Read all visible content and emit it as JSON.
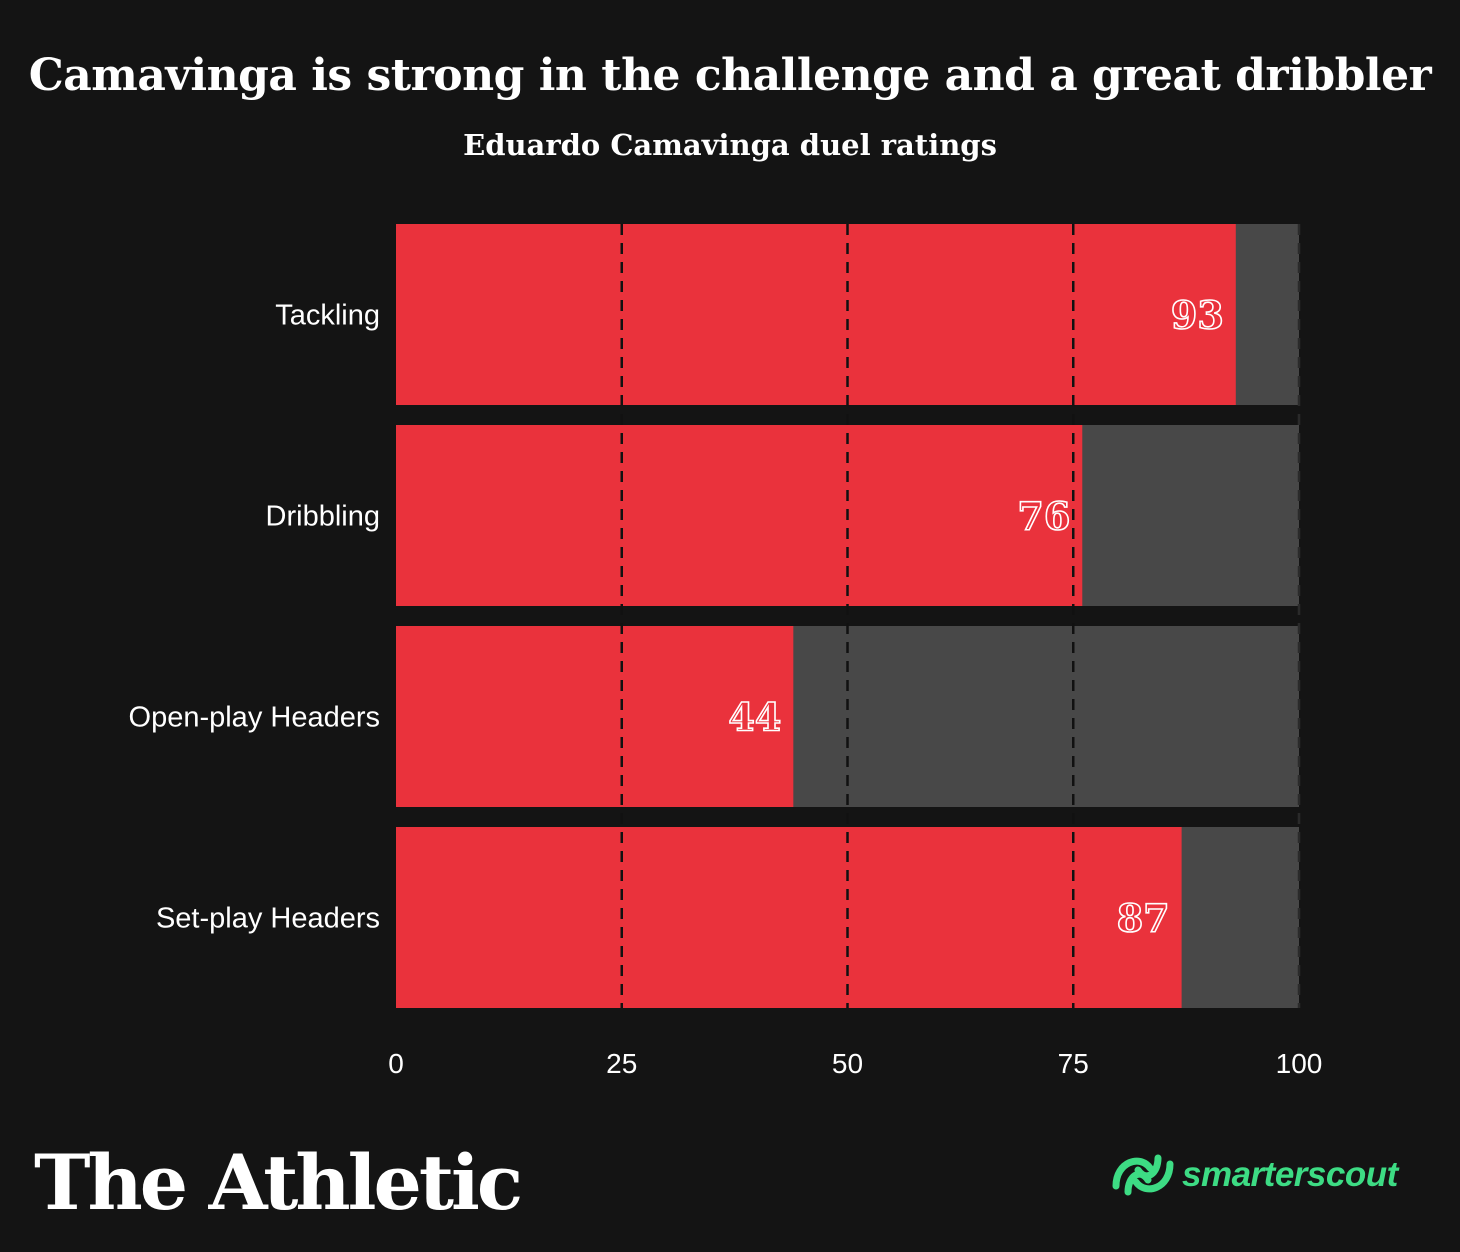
{
  "chart_data": {
    "type": "bar",
    "orientation": "horizontal",
    "stacked_background": true,
    "title": "Camavinga is strong in the challenge and a great dribbler",
    "subtitle": "Eduardo Camavinga duel ratings",
    "categories": [
      "Tackling",
      "Dribbling",
      "Open-play Headers",
      "Set-play Headers"
    ],
    "values": [
      93,
      76,
      44,
      87
    ],
    "xlim": [
      0,
      100
    ],
    "xticks": [
      0,
      25,
      50,
      75,
      100
    ],
    "xtick_labels": [
      "0",
      "25",
      "50",
      "75",
      "100"
    ],
    "grid": "dashed vertical at 25, 50, 75, 100",
    "colors": {
      "bar": "#ea323c",
      "remainder": "#484848",
      "background": "#141414"
    }
  },
  "branding": {
    "publisher": "The Athletic",
    "partner": "smarterscout",
    "partner_icon": "smarterscout-logo-icon",
    "partner_color": "#3ddc84"
  }
}
